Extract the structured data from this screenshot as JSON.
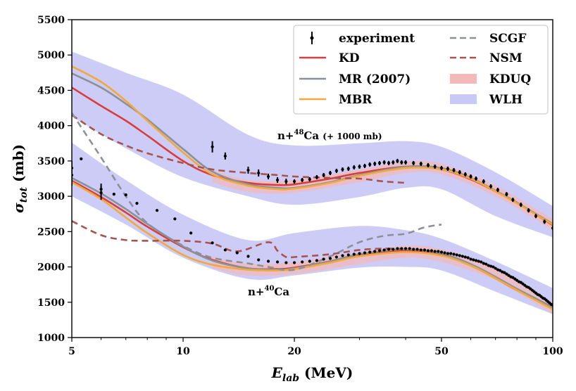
{
  "chart_data": {
    "type": "line",
    "xlabel": "E_lab (MeV)",
    "ylabel": "σ_tot (mb)",
    "xscale": "log",
    "xlim": [
      5,
      100
    ],
    "ylim": [
      1000,
      5500
    ],
    "xticks": [
      5,
      10,
      20,
      50,
      100
    ],
    "yticks": [
      1000,
      1500,
      2000,
      2500,
      3000,
      3500,
      4000,
      4500,
      5000,
      5500
    ],
    "legend_position": "top-right",
    "annotations": [
      {
        "text": "n+48Ca (+ 1000 mb)",
        "x": 28,
        "y": 3870
      },
      {
        "text": "n+40Ca",
        "x": 17.3,
        "y": 1640
      }
    ],
    "legend": [
      {
        "label": "experiment",
        "kind": "errorbar",
        "color": "#000000"
      },
      {
        "label": "KD",
        "kind": "line",
        "color": "#d93d3d"
      },
      {
        "label": "MR (2007)",
        "kind": "line",
        "color": "#8c9198"
      },
      {
        "label": "MBR",
        "kind": "line",
        "color": "#f2a93b"
      },
      {
        "label": "SCGF",
        "kind": "dashed",
        "color": "#8c9198"
      },
      {
        "label": "NSM",
        "kind": "dashed",
        "color": "#a8544e"
      },
      {
        "label": "KDUQ",
        "kind": "band",
        "color": "#f3b9b9"
      },
      {
        "label": "WLH",
        "kind": "band",
        "color": "#c9c9f7"
      }
    ],
    "bands": [
      {
        "name": "WLH",
        "system": "n+48Ca",
        "color": "#c9c9f7",
        "x": [
          5,
          7,
          10,
          15,
          20,
          30,
          40,
          50,
          70,
          100
        ],
        "upper": [
          5050,
          4750,
          4440,
          3870,
          3720,
          3750,
          3780,
          3700,
          3340,
          2860
        ],
        "lower": [
          4130,
          3680,
          3270,
          3000,
          2880,
          2990,
          3120,
          3100,
          2720,
          2420
        ]
      },
      {
        "name": "WLH",
        "system": "n+40Ca",
        "color": "#c9c9f7",
        "x": [
          5,
          7,
          10,
          15,
          20,
          30,
          40,
          50,
          70,
          100
        ],
        "upper": [
          3760,
          3230,
          2740,
          2380,
          2480,
          2580,
          2520,
          2400,
          2080,
          1700
        ],
        "lower": [
          3000,
          2600,
          2130,
          1830,
          1880,
          1990,
          2000,
          1950,
          1650,
          1330
        ]
      },
      {
        "name": "KDUQ",
        "system": "n+48Ca",
        "color": "#f3b9b9",
        "x": [
          12,
          15,
          20,
          30,
          40,
          50,
          70,
          100
        ],
        "upper": [
          3370,
          3230,
          3230,
          3380,
          3490,
          3460,
          3150,
          2680
        ],
        "lower": [
          3200,
          3060,
          3050,
          3200,
          3330,
          3310,
          3000,
          2520
        ]
      },
      {
        "name": "KDUQ",
        "system": "n+40Ca",
        "color": "#f3b9b9",
        "x": [
          12,
          15,
          20,
          30,
          40,
          50,
          70,
          100
        ],
        "upper": [
          2150,
          2040,
          2070,
          2210,
          2300,
          2250,
          1990,
          1490
        ],
        "lower": [
          1980,
          1880,
          1900,
          2040,
          2130,
          2070,
          1810,
          1330
        ]
      }
    ],
    "series": [
      {
        "name": "KD",
        "system": "n+48Ca",
        "style": "solid",
        "color": "#d93d3d",
        "x": [
          5,
          6,
          7,
          8,
          10,
          12,
          15,
          18,
          20,
          25,
          30,
          40,
          50,
          60,
          70,
          80,
          100
        ],
        "y": [
          4540,
          4280,
          4070,
          3860,
          3500,
          3300,
          3190,
          3160,
          3170,
          3250,
          3330,
          3420,
          3380,
          3240,
          3070,
          2910,
          2590
        ]
      },
      {
        "name": "MR (2007)",
        "system": "n+48Ca",
        "style": "solid",
        "color": "#8c9198",
        "x": [
          5,
          6,
          7,
          8,
          10,
          12,
          15,
          18,
          20,
          25,
          30,
          40,
          50,
          60,
          70,
          80,
          100
        ],
        "y": [
          4740,
          4540,
          4310,
          4090,
          3670,
          3350,
          3170,
          3120,
          3120,
          3200,
          3300,
          3420,
          3400,
          3260,
          3080,
          2910,
          2610
        ]
      },
      {
        "name": "MBR",
        "system": "n+48Ca",
        "style": "solid",
        "color": "#f2a93b",
        "x": [
          5,
          6,
          7,
          8,
          10,
          12,
          15,
          18,
          20,
          25,
          30,
          40,
          50,
          60,
          70,
          80,
          100
        ],
        "y": [
          4840,
          4620,
          4350,
          4070,
          3620,
          3310,
          3150,
          3100,
          3110,
          3190,
          3290,
          3400,
          3380,
          3250,
          3070,
          2900,
          2600
        ]
      },
      {
        "name": "NSM",
        "system": "n+48Ca",
        "style": "dashed",
        "color": "#a8544e",
        "x": [
          5,
          6,
          7,
          8,
          10,
          12,
          15,
          18,
          20,
          25,
          30,
          35,
          40
        ],
        "y": [
          4150,
          3880,
          3720,
          3610,
          3470,
          3380,
          3330,
          3300,
          3280,
          3260,
          3250,
          3210,
          3190
        ]
      },
      {
        "name": "KD",
        "system": "n+40Ca",
        "style": "solid",
        "color": "#d93d3d",
        "x": [
          5,
          6,
          7,
          8,
          10,
          12,
          15,
          18,
          20,
          25,
          30,
          40,
          50,
          60,
          70,
          80,
          100
        ],
        "y": [
          3220,
          2990,
          2770,
          2570,
          2280,
          2100,
          1980,
          1970,
          1990,
          2080,
          2170,
          2230,
          2170,
          2020,
          1840,
          1670,
          1420
        ]
      },
      {
        "name": "MR (2007)",
        "system": "n+40Ca",
        "style": "solid",
        "color": "#8c9198",
        "x": [
          5,
          6,
          7,
          8,
          10,
          12,
          15,
          18,
          20,
          25,
          30,
          40,
          50,
          60,
          70,
          80,
          100
        ],
        "y": [
          3260,
          3040,
          2820,
          2610,
          2290,
          2090,
          1980,
          1960,
          1980,
          2080,
          2180,
          2250,
          2190,
          2040,
          1860,
          1690,
          1430
        ]
      },
      {
        "name": "MBR",
        "system": "n+40Ca",
        "style": "solid",
        "color": "#f2a93b",
        "x": [
          5,
          6,
          7,
          8,
          10,
          12,
          15,
          18,
          20,
          25,
          30,
          40,
          50,
          60,
          70,
          80,
          100
        ],
        "y": [
          3200,
          2960,
          2700,
          2480,
          2170,
          2030,
          1960,
          1950,
          1970,
          2060,
          2150,
          2210,
          2160,
          2020,
          1840,
          1670,
          1400
        ]
      },
      {
        "name": "SCGF",
        "system": "n+40Ca",
        "style": "dashed",
        "color": "#8c9198",
        "x": [
          5,
          6,
          7,
          8,
          10,
          12,
          15,
          17,
          20,
          25,
          30,
          35,
          40,
          45,
          50
        ],
        "y": [
          4180,
          3550,
          3000,
          2620,
          2300,
          2130,
          2050,
          2000,
          1960,
          2150,
          2350,
          2440,
          2470,
          2560,
          2600
        ]
      },
      {
        "name": "NSM",
        "system": "n+40Ca",
        "style": "dashed",
        "color": "#a8544e",
        "x": [
          5,
          6,
          7,
          8,
          10,
          12,
          14,
          17,
          18,
          19,
          20,
          25,
          30,
          35,
          40
        ],
        "y": [
          2650,
          2450,
          2380,
          2370,
          2370,
          2330,
          2220,
          2350,
          2230,
          2140,
          2140,
          2180,
          2240,
          2260,
          2250
        ]
      }
    ],
    "experiment": {
      "n+48Ca": {
        "x": [
          5.0,
          5.3,
          6.0,
          7.0,
          12.0,
          13.0,
          15.0,
          16.0,
          17.0,
          18.0,
          19.0,
          20.0,
          21.0,
          22.0,
          23.0,
          24.0,
          25.0,
          26.0,
          27.0,
          28.0,
          29.0,
          30.0,
          31.0,
          32.0,
          33.0,
          34.0,
          35.0,
          36.0,
          37.0,
          38.0,
          39.0,
          40.0,
          42.0,
          44.0,
          46.0,
          48.0,
          50.0,
          52.0,
          54.0,
          56.0,
          58.0,
          60.0,
          62.0,
          65.0,
          68.0,
          71.0,
          75.0,
          78.0,
          82.0,
          86.0,
          90.0,
          95.0,
          100.0
        ],
        "y": [
          3400,
          3530,
          3050,
          3020,
          3700,
          3570,
          3370,
          3330,
          3280,
          3230,
          3210,
          3210,
          3230,
          3240,
          3270,
          3300,
          3330,
          3360,
          3380,
          3390,
          3410,
          3420,
          3430,
          3450,
          3460,
          3470,
          3480,
          3470,
          3480,
          3500,
          3480,
          3480,
          3470,
          3460,
          3440,
          3420,
          3400,
          3390,
          3370,
          3340,
          3310,
          3280,
          3250,
          3210,
          3140,
          3090,
          3030,
          2950,
          2880,
          2800,
          2720,
          2640,
          2550
        ],
        "err": [
          100,
          20,
          100,
          20,
          80,
          50,
          50,
          50,
          40,
          40,
          40,
          30,
          30,
          30,
          30,
          30,
          30,
          30,
          30,
          30,
          30,
          30,
          30,
          30,
          30,
          30,
          30,
          30,
          30,
          30,
          30,
          30,
          30,
          30,
          30,
          30,
          30,
          30,
          30,
          30,
          30,
          30,
          30,
          30,
          30,
          30,
          30,
          30,
          30,
          30,
          30,
          30,
          30
        ]
      },
      "n+40Ca": {
        "x": [
          5.0,
          6.0,
          6.5,
          7.5,
          8.5,
          9.5,
          10.5,
          12.0,
          13.0,
          14.0,
          15.0,
          16.0,
          17.0,
          18.0,
          19.0,
          20.0,
          21.0,
          22.0,
          23.0,
          24.0,
          25.0,
          26.0,
          27.0,
          28.0,
          29.0,
          30.0,
          31.0,
          32.0,
          33.0,
          34.0,
          35.0,
          36.0,
          37.0,
          38.0,
          39.0,
          40.0,
          41.0,
          42.0,
          43.0,
          44.0,
          45.0,
          46.0,
          47.0,
          48.0,
          49.0,
          50.0,
          51.0,
          52.0,
          53.0,
          54.0,
          55.0,
          56.0,
          57.0,
          58.0,
          59.0,
          60.0,
          61.0,
          62.0,
          63.0,
          64.0,
          65.0,
          66.0,
          67.0,
          68.0,
          69.0,
          70.0,
          71.0,
          72.0,
          73.0,
          74.0,
          75.0,
          76.0,
          77.0,
          78.0,
          79.0,
          80.0,
          81.0,
          82.0,
          83.0,
          84.0,
          85.0,
          86.0,
          87.0,
          88.0,
          89.0,
          90.0,
          91.0,
          92.0,
          93.0,
          94.0,
          95.0,
          96.0,
          97.0,
          98.0,
          99.0,
          100.0
        ],
        "y": [
          3300,
          3100,
          3030,
          2900,
          2800,
          2680,
          2480,
          2340,
          2240,
          2200,
          2150,
          2100,
          2080,
          2070,
          2060,
          2060,
          2070,
          2080,
          2090,
          2110,
          2120,
          2140,
          2160,
          2170,
          2180,
          2190,
          2200,
          2210,
          2220,
          2230,
          2240,
          2250,
          2250,
          2260,
          2260,
          2260,
          2260,
          2250,
          2250,
          2240,
          2240,
          2230,
          2230,
          2220,
          2220,
          2210,
          2200,
          2190,
          2190,
          2180,
          2170,
          2160,
          2150,
          2140,
          2130,
          2110,
          2100,
          2090,
          2080,
          2070,
          2050,
          2040,
          2020,
          2010,
          2000,
          1980,
          1960,
          1950,
          1930,
          1920,
          1900,
          1880,
          1860,
          1850,
          1830,
          1810,
          1790,
          1780,
          1760,
          1740,
          1720,
          1710,
          1690,
          1670,
          1650,
          1630,
          1610,
          1600,
          1580,
          1560,
          1550,
          1530,
          1510,
          1490,
          1470,
          1460
        ],
        "err": [
          150,
          80,
          20,
          20,
          20,
          20,
          20,
          20,
          20,
          20,
          20,
          20,
          20,
          20,
          20,
          20,
          20,
          20,
          20,
          20,
          20,
          20,
          20,
          20,
          20,
          20,
          20,
          20,
          20,
          20,
          20,
          20,
          20,
          20,
          20,
          20,
          20,
          20,
          20,
          20,
          20,
          20,
          20,
          20,
          20,
          20,
          20,
          20,
          20,
          20,
          20,
          20,
          20,
          20,
          20,
          20,
          20,
          20,
          20,
          20,
          20,
          20,
          20,
          20,
          20,
          20,
          20,
          20,
          20,
          20,
          20,
          20,
          20,
          20,
          20,
          20,
          20,
          20,
          20,
          20,
          20,
          20,
          20,
          20,
          20,
          20,
          20,
          20,
          20,
          20,
          20,
          20,
          20,
          20,
          20,
          20
        ]
      }
    }
  }
}
